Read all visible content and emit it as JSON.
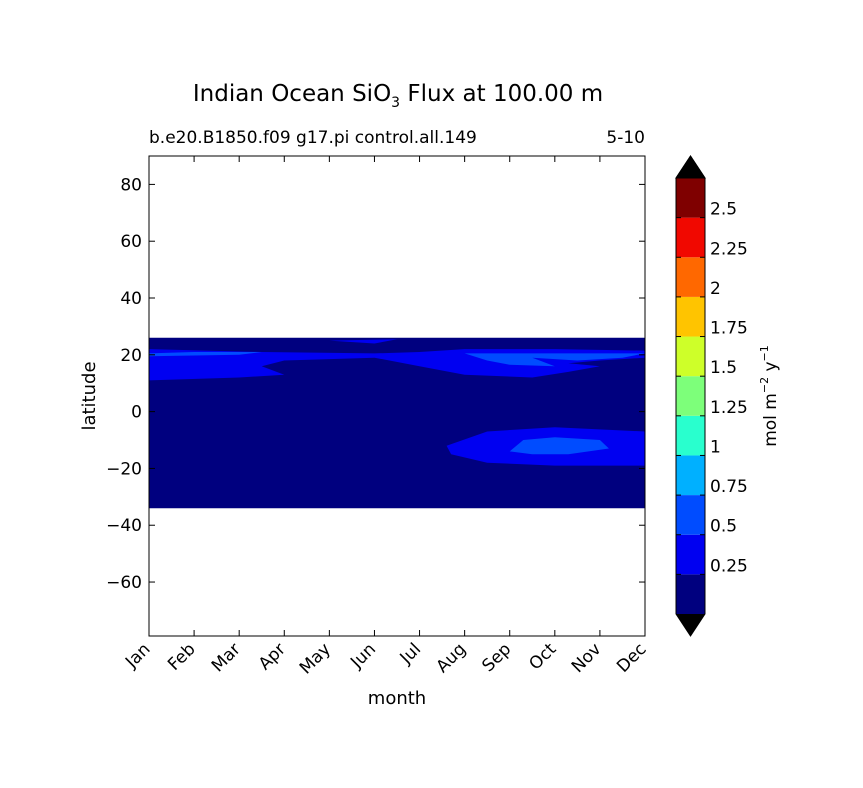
{
  "chart_data": {
    "type": "heatmap",
    "title": "Indian Ocean SiO",
    "title_sub": "3",
    "title_tail": " Flux at 100.00 m",
    "subtitle_left": "b.e20.B1850.f09 g17.pi control.all.149",
    "subtitle_right": "5-10",
    "xlabel": "month",
    "ylabel": "latitude",
    "x_ticks": [
      "Jan",
      "Feb",
      "Mar",
      "Apr",
      "May",
      "Jun",
      "Jul",
      "Aug",
      "Sep",
      "Oct",
      "Nov",
      "Dec"
    ],
    "y_ticks": [
      "80",
      "60",
      "40",
      "20",
      "0",
      "−20",
      "−40",
      "−60"
    ],
    "ylim": [
      -79,
      90
    ],
    "data_lat_range": [
      -34,
      26
    ],
    "colorbar": {
      "label_main": "mol m",
      "label_exp1": "−2",
      "label_mid": " y",
      "label_exp2": "−1",
      "levels": [
        0.0,
        0.25,
        0.5,
        0.75,
        1.0,
        1.25,
        1.5,
        1.75,
        2.0,
        2.25,
        2.5,
        2.75
      ],
      "tick_labels": [
        "0.25",
        "0.5",
        "0.75",
        "1",
        "1.25",
        "1.5",
        "1.75",
        "2",
        "2.25",
        "2.5"
      ],
      "colors": [
        "#00007f",
        "#0000f1",
        "#004cff",
        "#00b0ff",
        "#29ffce",
        "#7dff7a",
        "#ceff29",
        "#ffc400",
        "#ff6800",
        "#f10800",
        "#7f0000"
      ],
      "extend": "both"
    },
    "regions": [
      {
        "level": 0,
        "points": [
          [
            1,
            -34
          ],
          [
            12,
            -34
          ],
          [
            12,
            26
          ],
          [
            1,
            26
          ]
        ]
      },
      {
        "level": 1,
        "points": [
          [
            1,
            22
          ],
          [
            3.5,
            21
          ],
          [
            6,
            20.5
          ],
          [
            7,
            21
          ],
          [
            8,
            22
          ],
          [
            10,
            22
          ],
          [
            12,
            21.5
          ],
          [
            12,
            19
          ],
          [
            11,
            18
          ],
          [
            10.3,
            17
          ],
          [
            11,
            16
          ],
          [
            10.3,
            14
          ],
          [
            9.5,
            12
          ],
          [
            8,
            13
          ],
          [
            7,
            16
          ],
          [
            6,
            19
          ],
          [
            4,
            18
          ],
          [
            3.5,
            16
          ],
          [
            4,
            13
          ],
          [
            3,
            12
          ],
          [
            1,
            11
          ]
        ]
      },
      {
        "level": 1,
        "points": [
          [
            5,
            25
          ],
          [
            6.5,
            25.5
          ],
          [
            6,
            24
          ]
        ]
      },
      {
        "level": 1,
        "points": [
          [
            7.6,
            -12
          ],
          [
            8.5,
            -7
          ],
          [
            10,
            -5.5
          ],
          [
            12,
            -7
          ],
          [
            12,
            -19
          ],
          [
            10,
            -19
          ],
          [
            8.5,
            -18
          ],
          [
            7.7,
            -15
          ]
        ]
      },
      {
        "level": 2,
        "points": [
          [
            8,
            20.5
          ],
          [
            8.5,
            18
          ],
          [
            9,
            16.5
          ],
          [
            10,
            16
          ],
          [
            9.5,
            19
          ],
          [
            10.5,
            18
          ],
          [
            11.5,
            19
          ],
          [
            12,
            20.5
          ]
        ]
      },
      {
        "level": 2,
        "points": [
          [
            9,
            -14
          ],
          [
            9.3,
            -10
          ],
          [
            10,
            -9
          ],
          [
            11,
            -10
          ],
          [
            11.2,
            -13
          ],
          [
            10.3,
            -15
          ],
          [
            9.5,
            -15
          ]
        ]
      },
      {
        "level": 2,
        "points": [
          [
            1,
            20.5
          ],
          [
            2,
            21
          ],
          [
            3.5,
            21
          ],
          [
            3,
            20
          ],
          [
            1,
            19.5
          ]
        ]
      }
    ]
  }
}
